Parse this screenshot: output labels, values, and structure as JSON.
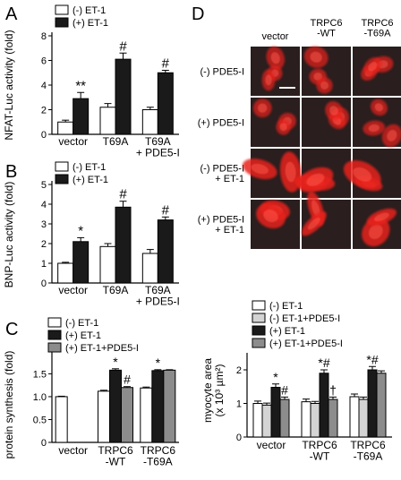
{
  "panels": {
    "A": "A",
    "B": "B",
    "C": "C",
    "D": "D"
  },
  "chart_data": [
    {
      "panel": "A",
      "type": "bar",
      "ylabel": "NFAT-Luc activity (fold)",
      "ylim": [
        0,
        8
      ],
      "yticks": [
        "0",
        "2",
        "4",
        "6",
        "8"
      ],
      "categories": [
        "vector",
        "T69A",
        "T69A\n+ PDE5-I"
      ],
      "legend": [
        "(-) ET-1",
        "(+) ET-1"
      ],
      "series": [
        {
          "name": "(-) ET-1",
          "color": "#ffffff",
          "values": [
            1.0,
            2.2,
            2.0
          ],
          "errors": [
            0.15,
            0.3,
            0.2
          ]
        },
        {
          "name": "(+) ET-1",
          "color": "#1a1a1a",
          "values": [
            2.9,
            6.1,
            5.0
          ],
          "errors": [
            0.5,
            0.5,
            0.2
          ]
        }
      ],
      "annotations": [
        {
          "series": 1,
          "index": 0,
          "text": "**"
        },
        {
          "series": 1,
          "index": 1,
          "text": "#"
        },
        {
          "series": 1,
          "index": 2,
          "text": "#"
        }
      ]
    },
    {
      "panel": "B",
      "type": "bar",
      "ylabel": "BNP-Luc activity (fold)",
      "ylim": [
        0,
        5
      ],
      "yticks": [
        "0",
        "1",
        "2",
        "3",
        "4",
        "5"
      ],
      "categories": [
        "vector",
        "T69A",
        "T69A\n+ PDE5-I"
      ],
      "legend": [
        "(-) ET-1",
        "(+) ET-1"
      ],
      "series": [
        {
          "name": "(-) ET-1",
          "color": "#ffffff",
          "values": [
            1.0,
            1.85,
            1.5
          ],
          "errors": [
            0.05,
            0.15,
            0.2
          ]
        },
        {
          "name": "(+) ET-1",
          "color": "#1a1a1a",
          "values": [
            2.1,
            3.85,
            3.2
          ],
          "errors": [
            0.2,
            0.3,
            0.15
          ]
        }
      ],
      "annotations": [
        {
          "series": 1,
          "index": 0,
          "text": "*"
        },
        {
          "series": 1,
          "index": 1,
          "text": "#"
        },
        {
          "series": 1,
          "index": 2,
          "text": "#"
        }
      ]
    },
    {
      "panel": "C",
      "type": "bar",
      "ylabel": "protein synthesis (fold)",
      "ylim": [
        0,
        1.9
      ],
      "yticks": [
        "0",
        "0.5",
        "1.0",
        "1.5"
      ],
      "categories": [
        "vector",
        "TRPC6\n-WT",
        "TRPC6\n-T69A"
      ],
      "legend": [
        "(-) ET-1",
        "(+) ET-1",
        "(+) ET-1+PDE5-I"
      ],
      "series": [
        {
          "name": "(-) ET-1",
          "color": "#ffffff",
          "values": [
            1.0,
            1.12,
            1.19
          ],
          "errors": [
            0.01,
            0.02,
            0.02
          ]
        },
        {
          "name": "(+) ET-1",
          "color": "#1a1a1a",
          "values": [
            null,
            1.58,
            1.57
          ],
          "errors": [
            0,
            0.03,
            0.02
          ]
        },
        {
          "name": "(+) ET-1+PDE5-I",
          "color": "#8c8c8c",
          "values": [
            null,
            1.2,
            1.58
          ],
          "errors": [
            0,
            0.02,
            0.01
          ]
        }
      ],
      "annotations": [
        {
          "series": 1,
          "index": 1,
          "text": "*"
        },
        {
          "series": 2,
          "index": 1,
          "text": "#"
        },
        {
          "series": 1,
          "index": 2,
          "text": "*"
        }
      ]
    },
    {
      "panel": "D-bottom",
      "type": "bar",
      "ylabel": "myocyte area\n(x 10³ µm²)",
      "ylim": [
        0,
        2.4
      ],
      "yticks": [
        "0",
        "1",
        "2"
      ],
      "categories": [
        "vector",
        "TRPC6\n-WT",
        "TRPC6\n-T69A"
      ],
      "legend": [
        "(-) ET-1",
        "(-) ET-1+PDE5-I",
        "(+) ET-1",
        "(+) ET-1+PDE5-I"
      ],
      "series": [
        {
          "name": "(-) ET-1",
          "color": "#ffffff",
          "values": [
            1.0,
            1.05,
            1.2
          ],
          "errors": [
            0.07,
            0.08,
            0.08
          ]
        },
        {
          "name": "(-) ET-1+PDE5-I",
          "color": "#d4d4d4",
          "values": [
            0.95,
            1.0,
            1.12
          ],
          "errors": [
            0.06,
            0.06,
            0.07
          ]
        },
        {
          "name": "(+) ET-1",
          "color": "#1a1a1a",
          "values": [
            1.48,
            1.9,
            2.0
          ],
          "errors": [
            0.1,
            0.1,
            0.1
          ]
        },
        {
          "name": "(+) ET-1+PDE5-I",
          "color": "#8c8c8c",
          "values": [
            1.12,
            1.12,
            1.9
          ],
          "errors": [
            0.07,
            0.07,
            0.07
          ]
        }
      ],
      "annotations": [
        {
          "series": 2,
          "index": 0,
          "text": "*"
        },
        {
          "series": 3,
          "index": 0,
          "text": "#"
        },
        {
          "series": 2,
          "index": 1,
          "text": "*#"
        },
        {
          "series": 3,
          "index": 1,
          "text": "†"
        },
        {
          "series": 2,
          "index": 2,
          "text": "*#"
        }
      ]
    }
  ],
  "micrographs": {
    "columns": [
      "vector",
      "TRPC6\n-WT",
      "TRPC6\n-T69A"
    ],
    "rows": [
      "(-) PDE5-I",
      "(+) PDE5-I",
      "(-) PDE5-I\n+ ET-1",
      "(+) PDE5-I\n+ ET-1"
    ],
    "cell_color": "#e8231e",
    "background_color": "#2a1e1e"
  }
}
